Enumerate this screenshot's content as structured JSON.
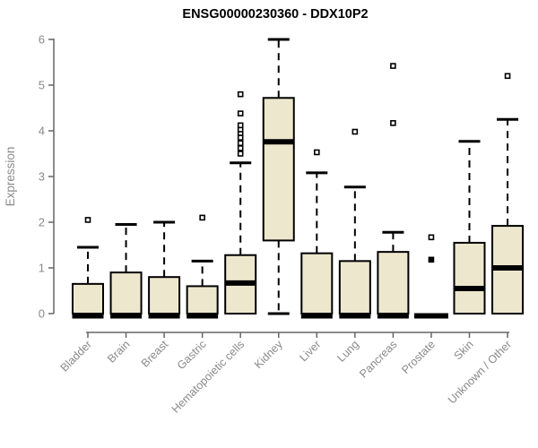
{
  "title": "ENSG00000230360 - DDX10P2",
  "chart_data": {
    "type": "boxplot",
    "title": "ENSG00000230360 - DDX10P2",
    "xlabel": "",
    "ylabel": "Expression",
    "ylim": [
      0,
      6
    ],
    "yticks": [
      0,
      1,
      2,
      3,
      4,
      5,
      6
    ],
    "grid": false,
    "legend": false,
    "categories": [
      "Bladder",
      "Brain",
      "Breast",
      "Gastric",
      "Hematopoietic cells",
      "Kidney",
      "Liver",
      "Lung",
      "Pancreas",
      "Prostate",
      "Skin",
      "Unknown / Other"
    ],
    "boxes": [
      {
        "label": "Bladder",
        "q1": 0,
        "median": 0,
        "q3": 0.65,
        "whisker_low": null,
        "whisker_high": 1.45,
        "outliers": [
          2.05
        ],
        "outliers_filled": []
      },
      {
        "label": "Brain",
        "q1": 0,
        "median": 0,
        "q3": 0.9,
        "whisker_low": null,
        "whisker_high": 1.95,
        "outliers": [],
        "outliers_filled": []
      },
      {
        "label": "Breast",
        "q1": 0,
        "median": 0,
        "q3": 0.8,
        "whisker_low": null,
        "whisker_high": 2.0,
        "outliers": [],
        "outliers_filled": []
      },
      {
        "label": "Gastric",
        "q1": 0,
        "median": 0,
        "q3": 0.6,
        "whisker_low": null,
        "whisker_high": 1.15,
        "outliers": [
          2.1
        ],
        "outliers_filled": []
      },
      {
        "label": "Hematopoietic cells",
        "q1": 0,
        "median": 0.67,
        "q3": 1.28,
        "whisker_low": null,
        "whisker_high": 3.3,
        "outliers": [
          3.5,
          3.62,
          3.73,
          3.85,
          3.95,
          4.03,
          4.12,
          4.38,
          4.8
        ],
        "outliers_filled": []
      },
      {
        "label": "Kidney",
        "q1": 1.6,
        "median": 3.76,
        "q3": 4.72,
        "whisker_low": 0,
        "whisker_high": 6.0,
        "outliers": [],
        "outliers_filled": []
      },
      {
        "label": "Liver",
        "q1": 0,
        "median": 0,
        "q3": 1.32,
        "whisker_low": null,
        "whisker_high": 3.08,
        "outliers": [
          3.53
        ],
        "outliers_filled": []
      },
      {
        "label": "Lung",
        "q1": 0,
        "median": 0,
        "q3": 1.15,
        "whisker_low": null,
        "whisker_high": 2.77,
        "outliers": [
          3.98
        ],
        "outliers_filled": []
      },
      {
        "label": "Pancreas",
        "q1": 0,
        "median": 0,
        "q3": 1.35,
        "whisker_low": null,
        "whisker_high": 1.78,
        "outliers": [
          4.17,
          5.42
        ],
        "outliers_filled": []
      },
      {
        "label": "Prostate",
        "q1": 0,
        "median": 0,
        "q3": 0,
        "whisker_low": null,
        "whisker_high": null,
        "outliers": [
          1.67
        ],
        "outliers_filled": [
          1.18
        ]
      },
      {
        "label": "Skin",
        "q1": 0,
        "median": 0.55,
        "q3": 1.55,
        "whisker_low": null,
        "whisker_high": 3.77,
        "outliers": [],
        "outliers_filled": []
      },
      {
        "label": "Unknown / Other",
        "q1": 0,
        "median": 1.0,
        "q3": 1.92,
        "whisker_low": null,
        "whisker_high": 4.25,
        "outliers": [
          5.2
        ],
        "outliers_filled": []
      }
    ],
    "colors": {
      "background": "#ffffff",
      "box_fill": "#EDE7CE",
      "box_border": "#000000",
      "median": "#000000",
      "whisker": "#000000",
      "outlier_stroke": "#000000",
      "axis_line": "#666666",
      "tick_label": "#898989",
      "axis_label": "#8a8a8a",
      "title": "#000000"
    }
  }
}
